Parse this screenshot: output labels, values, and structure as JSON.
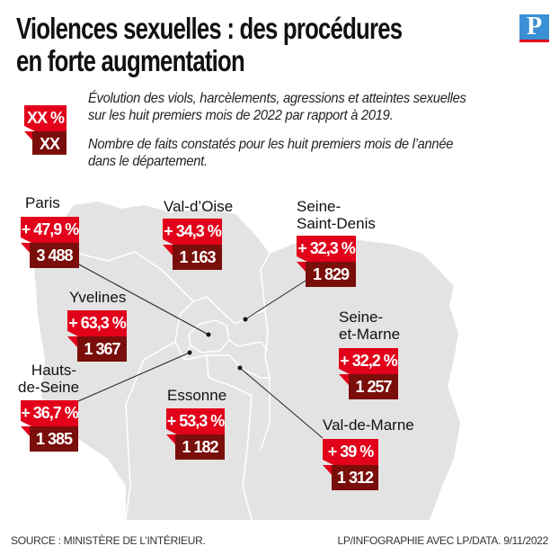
{
  "title_line1": "Violences sexuelles : des procédures",
  "title_line2": "en forte augmentation",
  "logo": "P",
  "legend": {
    "pct_sample": "XX %",
    "count_sample": "XX",
    "pct_desc_line1": "Évolution des viols, harcèlements, agressions et atteintes sexuelles",
    "pct_desc_line2": "sur les huit premiers mois de 2022 par rapport à 2019.",
    "count_desc_line1": "Nombre de faits constatés pour les huit premiers mois de l’année",
    "count_desc_line2": "dans le département."
  },
  "departments": [
    {
      "name": "Paris",
      "change": "+ 47,9 %",
      "count": "3 488"
    },
    {
      "name": "Val-d’Oise",
      "change": "+ 34,3 %",
      "count": "1 163"
    },
    {
      "name_line1": "Seine-",
      "name_line2": "Saint-Denis",
      "change": "+ 32,3 %",
      "count": "1 829"
    },
    {
      "name": "Yvelines",
      "change": "+ 63,3 %",
      "count": "1 367"
    },
    {
      "name_line1": "Hauts-",
      "name_line2": "de-Seine",
      "change": "+ 36,7 %",
      "count": "1 385"
    },
    {
      "name": "Essonne",
      "change": "+ 53,3 %",
      "count": "1 182"
    },
    {
      "name_line1": "Seine-",
      "name_line2": "et-Marne",
      "change": "+ 32,2 %",
      "count": "1 257"
    },
    {
      "name": "Val-de-Marne",
      "change": "+ 39 %",
      "count": "1 312"
    }
  ],
  "colors": {
    "red": "#e2001a",
    "dark_red": "#7a0e0a",
    "map": "#e3e3e3",
    "logo_blue": "#3b8fd4"
  },
  "footer": {
    "source": "SOURCE : MINISTÈRE DE L’INTÉRIEUR.",
    "credit": "LP/INFOGRAPHIE AVEC LP/DATA.  9/11/2022"
  }
}
